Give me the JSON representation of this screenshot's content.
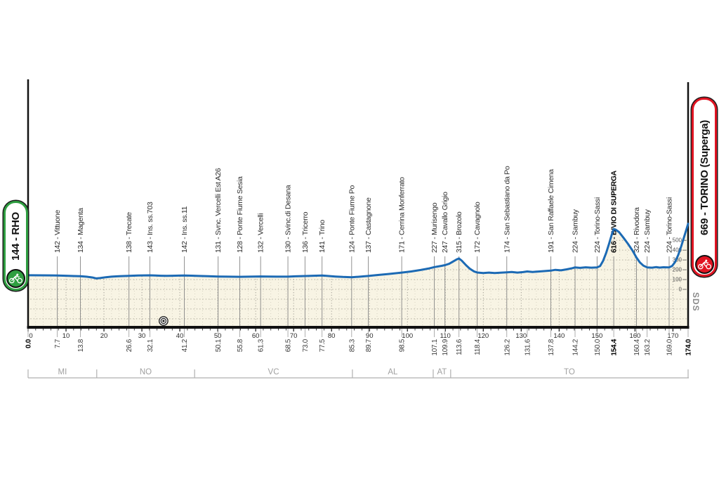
{
  "badges": {
    "start": {
      "label": "144 - RHO",
      "color": "#2f9e41"
    },
    "finish": {
      "label": "669 - TORINO (Superga)",
      "color": "#e01422"
    }
  },
  "watermark": "SDS",
  "chart_data": {
    "type": "area",
    "x_unit": "km",
    "y_unit": "m",
    "x_range": [
      0,
      174
    ],
    "elevation_ticks": [
      0,
      100,
      200,
      300,
      400,
      500
    ],
    "km_major_ticks": [
      0,
      10,
      20,
      30,
      40,
      50,
      60,
      70,
      80,
      90,
      100,
      110,
      120,
      130,
      140,
      150,
      160,
      170
    ],
    "km_minor_step": 2,
    "line_color": "#1c6ab4",
    "fill_color": "#f8f4e4",
    "dot_color": "#b3b0a0",
    "waypoints": [
      {
        "km": 7.7,
        "elev": 142,
        "name": "Vittuone"
      },
      {
        "km": 13.8,
        "elev": 134,
        "name": "Magenta"
      },
      {
        "km": 26.6,
        "elev": 138,
        "name": "Trecate"
      },
      {
        "km": 32.1,
        "elev": 143,
        "name": "Ins. ss.703"
      },
      {
        "km": 41.2,
        "elev": 142,
        "name": "Ins. ss.11"
      },
      {
        "km": 50.1,
        "elev": 131,
        "name": "Svnc. Vercelli Est A26"
      },
      {
        "km": 55.8,
        "elev": 128,
        "name": "Ponte Fiume Sesia"
      },
      {
        "km": 61.3,
        "elev": 132,
        "name": "Vercelli"
      },
      {
        "km": 68.5,
        "elev": 130,
        "name": "Svinc.di Desana"
      },
      {
        "km": 73.0,
        "elev": 136,
        "name": "Tricerro"
      },
      {
        "km": 77.5,
        "elev": 141,
        "name": "Trino"
      },
      {
        "km": 85.3,
        "elev": 124,
        "name": "Ponte Fiume Po"
      },
      {
        "km": 89.7,
        "elev": 137,
        "name": "Castagnone"
      },
      {
        "km": 98.5,
        "elev": 171,
        "name": "Cerrina Monferrato"
      },
      {
        "km": 107.1,
        "elev": 227,
        "name": "Murisengo"
      },
      {
        "km": 109.9,
        "elev": 247,
        "name": "Cavallo Grigio"
      },
      {
        "km": 113.6,
        "elev": 315,
        "name": "Brozolo"
      },
      {
        "km": 118.4,
        "elev": 172,
        "name": "Cavagnolo"
      },
      {
        "km": 126.2,
        "elev": 174,
        "name": "San Sebastiano da Po"
      },
      {
        "km": 137.8,
        "elev": 191,
        "name": "San Raffaele Cimena"
      },
      {
        "km": 144.2,
        "elev": 224,
        "name": "Sambuy"
      },
      {
        "km": 150.0,
        "elev": 224,
        "name": "Torino-Sassi"
      },
      {
        "km": 154.4,
        "elev": 616,
        "name": "BIVIO DI SUPERGA",
        "bold": true
      },
      {
        "km": 160.4,
        "elev": 324,
        "name": "Rivodora"
      },
      {
        "km": 163.2,
        "elev": 224,
        "name": "Sambuy"
      },
      {
        "km": 169.0,
        "elev": 224,
        "name": "Torino-Sassi"
      }
    ],
    "distance_ticks": [
      {
        "km": 0.0,
        "label": "0.0",
        "bold": true
      },
      {
        "km": 7.7,
        "label": "7.7"
      },
      {
        "km": 13.8,
        "label": "13.8"
      },
      {
        "km": 26.6,
        "label": "26.6"
      },
      {
        "km": 32.1,
        "label": "32.1"
      },
      {
        "km": 41.2,
        "label": "41.2"
      },
      {
        "km": 50.1,
        "label": "50.1"
      },
      {
        "km": 55.8,
        "label": "55.8"
      },
      {
        "km": 61.3,
        "label": "61.3"
      },
      {
        "km": 68.5,
        "label": "68.5"
      },
      {
        "km": 73.0,
        "label": "73.0"
      },
      {
        "km": 77.5,
        "label": "77.5"
      },
      {
        "km": 85.3,
        "label": "85.3"
      },
      {
        "km": 89.7,
        "label": "89.7"
      },
      {
        "km": 98.5,
        "label": "98.5"
      },
      {
        "km": 107.1,
        "label": "107.1"
      },
      {
        "km": 109.9,
        "label": "109.9"
      },
      {
        "km": 113.6,
        "label": "113.6"
      },
      {
        "km": 118.4,
        "label": "118.4"
      },
      {
        "km": 126.2,
        "label": "126.2"
      },
      {
        "km": 131.6,
        "label": "131.6"
      },
      {
        "km": 137.8,
        "label": "137.8"
      },
      {
        "km": 144.2,
        "label": "144.2"
      },
      {
        "km": 150.0,
        "label": "150.0"
      },
      {
        "km": 154.4,
        "label": "154.4",
        "bold": true
      },
      {
        "km": 160.4,
        "label": "160.4"
      },
      {
        "km": 163.2,
        "label": "163.2"
      },
      {
        "km": 169.0,
        "label": "169.0"
      },
      {
        "km": 174.0,
        "label": "174.0",
        "bold": true
      }
    ],
    "regions": [
      {
        "label": "MI",
        "from_km": 0,
        "to_km": 18.1
      },
      {
        "label": "NO",
        "from_km": 18.1,
        "to_km": 43.9
      },
      {
        "label": "VC",
        "from_km": 43.9,
        "to_km": 85.5
      },
      {
        "label": "AL",
        "from_km": 85.5,
        "to_km": 106.8
      },
      {
        "label": "AT",
        "from_km": 106.8,
        "to_km": 111.4
      },
      {
        "label": "TO",
        "from_km": 111.4,
        "to_km": 174
      }
    ],
    "axis_marker_km": 35.7,
    "profile": [
      [
        0,
        144
      ],
      [
        3,
        143
      ],
      [
        6,
        142.5
      ],
      [
        7.7,
        142
      ],
      [
        10,
        139
      ],
      [
        12,
        136
      ],
      [
        13.8,
        134
      ],
      [
        15.5,
        129
      ],
      [
        17,
        121
      ],
      [
        18,
        112
      ],
      [
        19,
        115
      ],
      [
        20.5,
        124
      ],
      [
        22,
        130
      ],
      [
        24,
        134
      ],
      [
        26.6,
        138
      ],
      [
        29,
        141
      ],
      [
        32.1,
        143
      ],
      [
        33.5,
        141
      ],
      [
        35,
        139
      ],
      [
        36.5,
        137.5
      ],
      [
        38,
        139
      ],
      [
        41.2,
        142
      ],
      [
        43,
        140
      ],
      [
        45,
        137
      ],
      [
        47.5,
        134
      ],
      [
        50.1,
        131
      ],
      [
        52.5,
        129.5
      ],
      [
        55.8,
        128
      ],
      [
        58.5,
        130
      ],
      [
        61.3,
        132
      ],
      [
        63,
        131
      ],
      [
        65.5,
        130
      ],
      [
        68.5,
        130
      ],
      [
        70.5,
        133
      ],
      [
        73,
        136
      ],
      [
        75.2,
        139
      ],
      [
        77.5,
        141
      ],
      [
        79,
        137
      ],
      [
        81,
        131
      ],
      [
        83,
        127
      ],
      [
        85.3,
        124
      ],
      [
        87,
        128
      ],
      [
        89.7,
        137
      ],
      [
        92,
        146
      ],
      [
        95,
        157
      ],
      [
        98.5,
        171
      ],
      [
        101,
        183
      ],
      [
        103.5,
        198
      ],
      [
        105.5,
        212
      ],
      [
        107.1,
        227
      ],
      [
        109,
        240
      ],
      [
        109.9,
        247
      ],
      [
        111,
        261
      ],
      [
        112,
        284
      ],
      [
        113,
        306
      ],
      [
        113.6,
        315
      ],
      [
        114.3,
        294
      ],
      [
        115.5,
        244
      ],
      [
        116.5,
        209
      ],
      [
        117.5,
        184
      ],
      [
        118.4,
        172
      ],
      [
        120,
        167
      ],
      [
        121.5,
        171
      ],
      [
        123,
        167
      ],
      [
        124.5,
        170
      ],
      [
        126.2,
        174
      ],
      [
        127.5,
        178
      ],
      [
        129,
        171
      ],
      [
        130.5,
        176
      ],
      [
        131.6,
        183
      ],
      [
        133,
        178
      ],
      [
        134.5,
        182
      ],
      [
        136,
        186
      ],
      [
        137.8,
        191
      ],
      [
        139,
        199
      ],
      [
        140.5,
        194
      ],
      [
        142,
        204
      ],
      [
        143.5,
        216
      ],
      [
        144.2,
        224
      ],
      [
        145.5,
        219
      ],
      [
        147,
        225
      ],
      [
        148.5,
        221
      ],
      [
        150,
        224
      ],
      [
        150.8,
        238
      ],
      [
        151.6,
        292
      ],
      [
        152.4,
        372
      ],
      [
        153.2,
        470
      ],
      [
        153.9,
        562
      ],
      [
        154.4,
        616
      ],
      [
        155,
        606
      ],
      [
        155.8,
        584
      ],
      [
        157,
        524
      ],
      [
        158.2,
        462
      ],
      [
        159.3,
        398
      ],
      [
        160.4,
        324
      ],
      [
        161.3,
        274
      ],
      [
        162.2,
        242
      ],
      [
        163.2,
        224
      ],
      [
        164.5,
        221
      ],
      [
        165.5,
        227
      ],
      [
        166.5,
        222
      ],
      [
        167.5,
        226
      ],
      [
        169,
        224
      ],
      [
        169.8,
        239
      ],
      [
        170.6,
        281
      ],
      [
        171.4,
        352
      ],
      [
        172.2,
        442
      ],
      [
        173,
        542
      ],
      [
        173.6,
        616
      ],
      [
        174,
        669
      ]
    ]
  }
}
